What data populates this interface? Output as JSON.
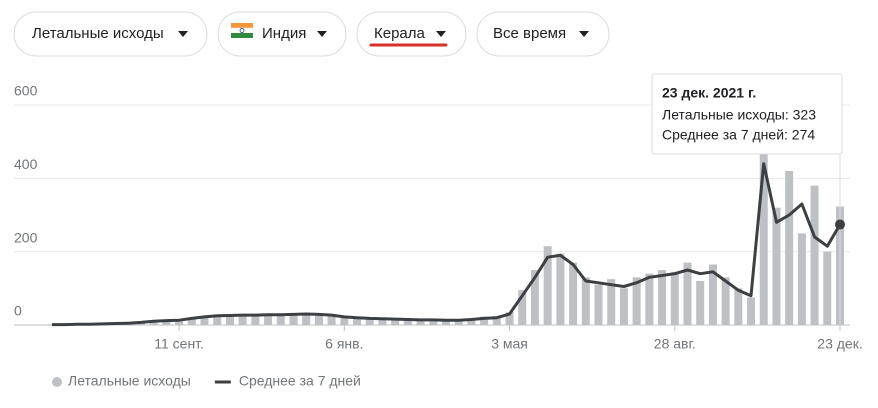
{
  "filters": [
    "Летальные исходы",
    "Индия",
    "Керала",
    "Все время"
  ],
  "chart_data": {
    "type": "combo",
    "categories": [
      null,
      null,
      null,
      null,
      null,
      null,
      null,
      null,
      null,
      null,
      "11 сент.",
      null,
      null,
      null,
      null,
      null,
      null,
      null,
      null,
      null,
      null,
      null,
      null,
      "6 янв.",
      null,
      null,
      null,
      null,
      null,
      null,
      null,
      null,
      null,
      null,
      null,
      null,
      "3 мая",
      null,
      null,
      null,
      null,
      null,
      null,
      null,
      null,
      null,
      null,
      null,
      null,
      "28 авг.",
      null,
      null,
      null,
      null,
      null,
      null,
      null,
      null,
      null,
      null,
      null,
      null,
      "23 дек."
    ],
    "series": [
      {
        "name": "Летальные исходы",
        "type": "bar",
        "color": "#bdc1c6",
        "values": [
          2,
          1,
          3,
          2,
          4,
          5,
          6,
          8,
          11,
          13,
          15,
          20,
          24,
          26,
          28,
          27,
          30,
          29,
          31,
          28,
          32,
          30,
          26,
          20,
          22,
          17,
          18,
          15,
          16,
          13,
          15,
          12,
          14,
          17,
          23,
          24,
          35,
          95,
          150,
          215,
          195,
          170,
          130,
          110,
          125,
          100,
          130,
          140,
          150,
          145,
          170,
          120,
          165,
          130,
          100,
          75,
          480,
          320,
          420,
          250,
          380,
          200,
          323
        ]
      },
      {
        "name": "Среднее за 7 дней",
        "type": "line",
        "color": "#3c4043",
        "values": [
          1,
          1,
          2,
          2,
          3,
          4,
          5,
          7,
          10,
          12,
          13,
          18,
          22,
          25,
          26,
          27,
          27,
          28,
          28,
          29,
          30,
          29,
          27,
          22,
          20,
          18,
          17,
          16,
          15,
          14,
          14,
          13,
          13,
          15,
          18,
          20,
          30,
          80,
          130,
          185,
          190,
          165,
          120,
          115,
          110,
          105,
          115,
          130,
          135,
          140,
          150,
          140,
          145,
          120,
          95,
          80,
          440,
          280,
          300,
          330,
          240,
          215,
          274
        ]
      }
    ],
    "ylim": [
      0,
      600
    ],
    "yticks": [
      0,
      200,
      400,
      600
    ],
    "grid": true,
    "tooltip": {
      "title": "23 дек. 2021 г.",
      "lines": [
        "Летальные исходы: 323",
        "Среднее за 7 дней: 274"
      ]
    }
  }
}
